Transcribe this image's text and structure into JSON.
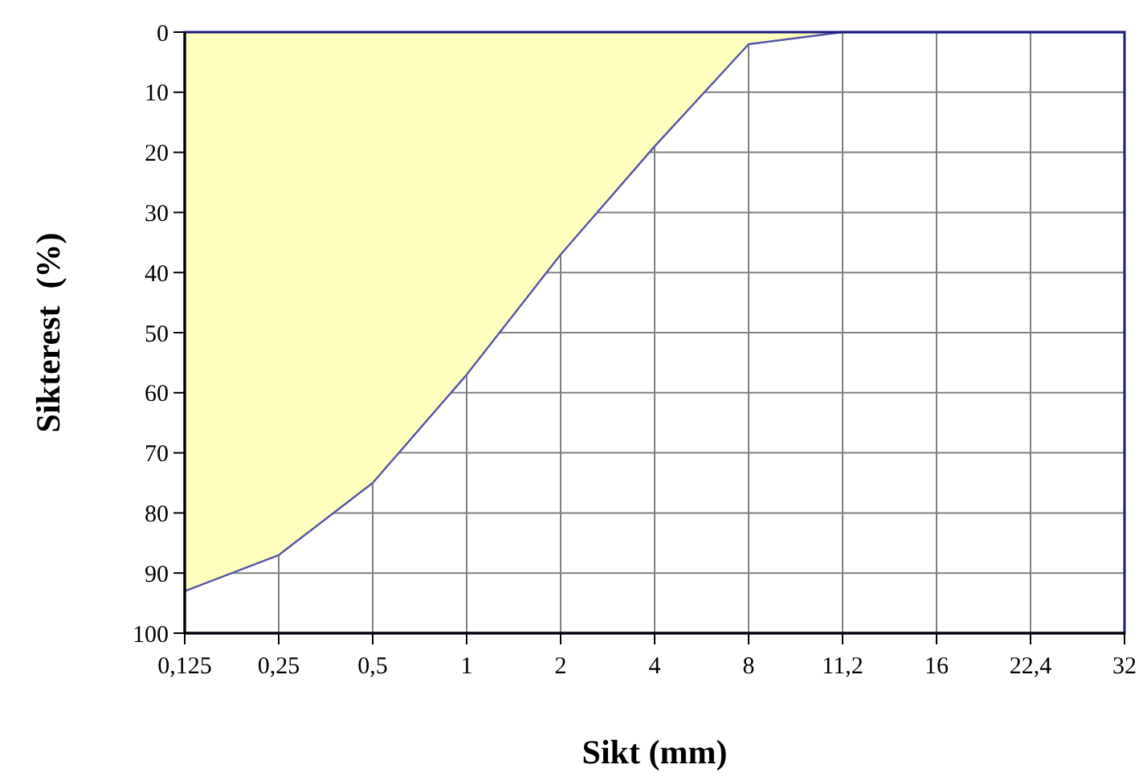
{
  "chart_data": {
    "type": "area",
    "xlabel": "Sikt (mm)",
    "ylabel": "Sikterest  (%)",
    "categories": [
      "0,125",
      "0,25",
      "0,5",
      "1",
      "2",
      "4",
      "8",
      "11,2",
      "16",
      "22,4",
      "32"
    ],
    "series": [
      {
        "color": "#ffffc0",
        "values": [
          93,
          87,
          75,
          57,
          37,
          19,
          2,
          0,
          0,
          0,
          0
        ]
      }
    ],
    "ylim": [
      100,
      0
    ],
    "yticks": [
      0,
      10,
      20,
      30,
      40,
      50,
      60,
      70,
      80,
      90,
      100
    ],
    "grid": true
  }
}
